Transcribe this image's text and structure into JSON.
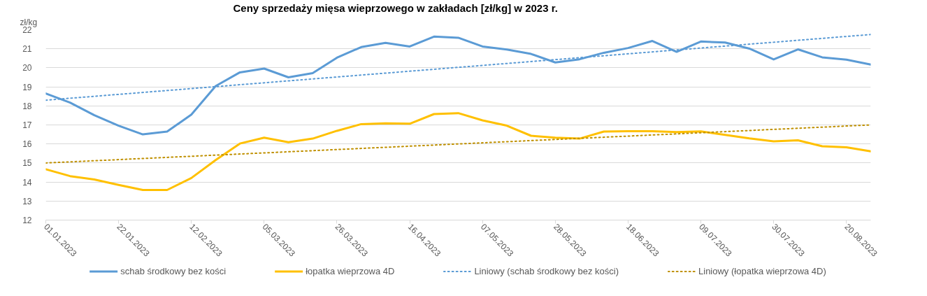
{
  "chart_data": {
    "type": "line",
    "title": "Ceny sprzedaży mięsa wieprzowego w zakładach [zł/kg] w 2023 r.",
    "ylabel": "zł/kg",
    "x": [
      "2023-01-01",
      "2023-01-08",
      "2023-01-15",
      "2023-01-22",
      "2023-01-29",
      "2023-02-05",
      "2023-02-12",
      "2023-02-19",
      "2023-02-26",
      "2023-03-05",
      "2023-03-12",
      "2023-03-19",
      "2023-03-26",
      "2023-04-02",
      "2023-04-09",
      "2023-04-16",
      "2023-04-23",
      "2023-04-30",
      "2023-05-07",
      "2023-05-14",
      "2023-05-21",
      "2023-05-28",
      "2023-06-04",
      "2023-06-11",
      "2023-06-18",
      "2023-06-25",
      "2023-07-02",
      "2023-07-09",
      "2023-07-16",
      "2023-07-23",
      "2023-07-30",
      "2023-08-06",
      "2023-08-13",
      "2023-08-20",
      "2023-08-27"
    ],
    "series": [
      {
        "name": "schab środkowy bez kości",
        "color": "#5b9bd5",
        "values": [
          18.65,
          18.17,
          17.51,
          16.96,
          16.5,
          16.65,
          17.54,
          19.04,
          19.76,
          19.96,
          19.5,
          19.72,
          20.53,
          21.09,
          21.31,
          21.12,
          21.64,
          21.58,
          21.12,
          20.96,
          20.73,
          20.28,
          20.45,
          20.79,
          21.04,
          21.41,
          20.84,
          21.38,
          21.33,
          21.01,
          20.44,
          20.97,
          20.55,
          20.43,
          20.17
        ]
      },
      {
        "name": "łopatka wieprzowa 4D",
        "color": "#ffc000",
        "values": [
          14.67,
          14.31,
          14.13,
          13.85,
          13.58,
          13.58,
          14.21,
          15.15,
          16.02,
          16.33,
          16.09,
          16.28,
          16.69,
          17.04,
          17.08,
          17.06,
          17.57,
          17.62,
          17.24,
          16.96,
          16.43,
          16.33,
          16.28,
          16.65,
          16.67,
          16.67,
          16.62,
          16.66,
          16.48,
          16.29,
          16.14,
          16.19,
          15.88,
          15.82,
          15.61
        ]
      },
      {
        "name": "Liniowy (schab środkowy bez kości)",
        "color": "#5b9bd5",
        "line_style": "dotted",
        "x": [
          "2023-01-01",
          "2023-08-27"
        ],
        "values": [
          18.3,
          21.75
        ]
      },
      {
        "name": "Liniowy (łopatka wieprzowa 4D)",
        "color": "#bf9000",
        "line_style": "dotted",
        "x": [
          "2023-01-01",
          "2023-08-27"
        ],
        "values": [
          15.0,
          17.0
        ]
      }
    ],
    "xlim": [
      "2023-01-01",
      "2023-08-27"
    ],
    "xticks": [
      {
        "value": "2023-01-01",
        "label": "01.01.2023"
      },
      {
        "value": "2023-01-22",
        "label": "22.01.2023"
      },
      {
        "value": "2023-02-12",
        "label": "12.02.2023"
      },
      {
        "value": "2023-03-05",
        "label": "05.03.2023"
      },
      {
        "value": "2023-03-26",
        "label": "26.03.2023"
      },
      {
        "value": "2023-04-16",
        "label": "16.04.2023"
      },
      {
        "value": "2023-05-07",
        "label": "07.05.2023"
      },
      {
        "value": "2023-05-28",
        "label": "28.05.2023"
      },
      {
        "value": "2023-06-18",
        "label": "18.06.2023"
      },
      {
        "value": "2023-07-09",
        "label": "09.07.2023"
      },
      {
        "value": "2023-07-30",
        "label": "30.07.2023"
      },
      {
        "value": "2023-08-20",
        "label": "20.08.2023"
      }
    ],
    "ylim": [
      12,
      22
    ],
    "yticks": [
      12,
      13,
      14,
      15,
      16,
      17,
      18,
      19,
      20,
      21,
      22
    ],
    "grid": "y",
    "legend": "bottom",
    "marker": "none",
    "line_style": "solid"
  }
}
